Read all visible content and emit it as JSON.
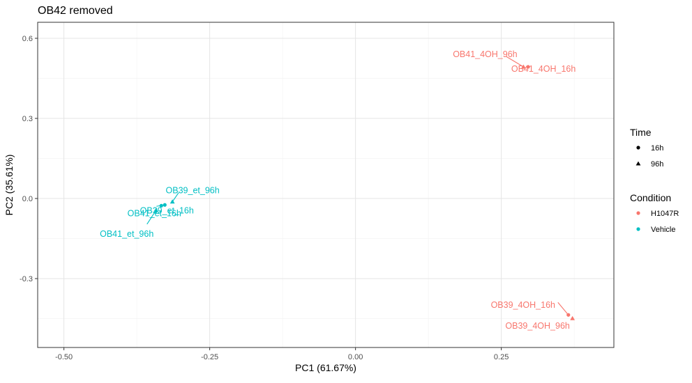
{
  "chart_data": {
    "type": "scatter",
    "title": "OB42 removed",
    "xlabel": "PC1 (61.67%)",
    "ylabel": "PC2 (35.61%)",
    "xlim": [
      -0.545,
      0.443
    ],
    "ylim": [
      -0.558,
      0.66
    ],
    "x_ticks": [
      -0.5,
      -0.25,
      0,
      0.25
    ],
    "x_tick_labels": [
      "-0.50",
      "-0.25",
      "0.00",
      "0.25"
    ],
    "y_ticks": [
      -0.3,
      0,
      0.3,
      0.6
    ],
    "y_tick_labels": [
      "-0.3",
      "0.0",
      "0.3",
      "0.6"
    ],
    "grid": true,
    "legend_position": "right",
    "legends": [
      {
        "title": "Time",
        "entries": [
          {
            "label": "16h",
            "shape": "circle",
            "color": "#000000"
          },
          {
            "label": "96h",
            "shape": "triangle",
            "color": "#000000"
          }
        ]
      },
      {
        "title": "Condition",
        "entries": [
          {
            "label": "H1047R",
            "shape": "circle",
            "color": "#F8766D"
          },
          {
            "label": "Vehicle",
            "shape": "circle",
            "color": "#00BFC4"
          }
        ]
      }
    ],
    "colors": {
      "H1047R": "#F8766D",
      "Vehicle": "#00BFC4"
    },
    "points": [
      {
        "label": "OB41_4OH_96h",
        "condition": "H1047R",
        "time": "96h",
        "x": 0.288,
        "y": 0.493
      },
      {
        "label": "OB41_4OH_16h",
        "condition": "H1047R",
        "time": "16h",
        "x": 0.296,
        "y": 0.493
      },
      {
        "label": "OB39_4OH_16h",
        "condition": "H1047R",
        "time": "16h",
        "x": 0.365,
        "y": -0.436
      },
      {
        "label": "OB39_4OH_96h",
        "condition": "H1047R",
        "time": "96h",
        "x": 0.372,
        "y": -0.449
      },
      {
        "label": "OB39_et_96h",
        "condition": "Vehicle",
        "time": "96h",
        "x": -0.314,
        "y": -0.012
      },
      {
        "label": "OB39_et_16h",
        "condition": "Vehicle",
        "time": "16h",
        "x": -0.333,
        "y": -0.027
      },
      {
        "label": "OB41_et_16h",
        "condition": "Vehicle",
        "time": "16h",
        "x": -0.327,
        "y": -0.024
      },
      {
        "label": "OB41_et_96h",
        "condition": "Vehicle",
        "time": "96h",
        "x": -0.342,
        "y": -0.044
      }
    ]
  }
}
